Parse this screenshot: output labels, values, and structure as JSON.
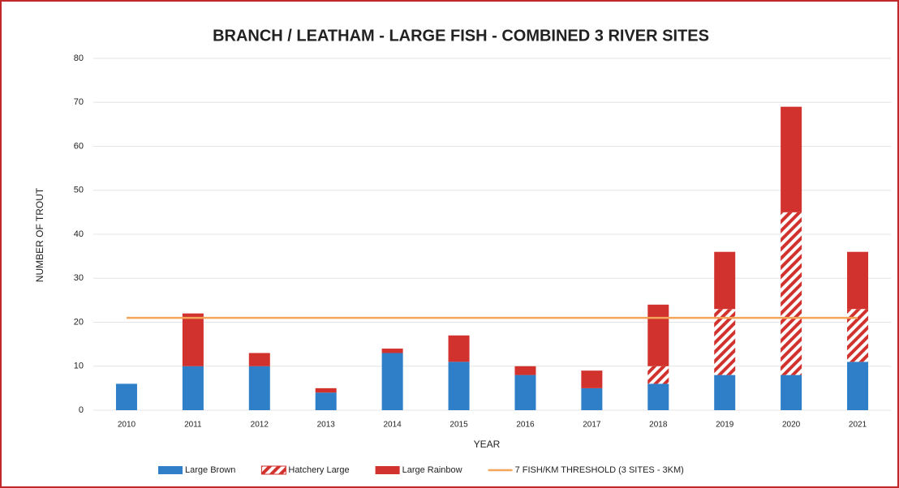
{
  "chart_data": {
    "type": "bar",
    "stacked": true,
    "title": "BRANCH / LEATHAM - LARGE FISH - COMBINED 3 RIVER SITES",
    "x_label": "YEAR",
    "y_label": "NUMBER OF TROUT",
    "categories": [
      "2010",
      "2011",
      "2012",
      "2013",
      "2014",
      "2015",
      "2016",
      "2017",
      "2018",
      "2019",
      "2020",
      "2021"
    ],
    "series": [
      {
        "name": "Large Brown",
        "color": "#2f7fc8",
        "values": [
          6,
          10,
          10,
          4,
          13,
          11,
          8,
          5,
          6,
          8,
          8,
          11
        ]
      },
      {
        "name": "Hatchery Large",
        "color": "#d2322d",
        "hatch": true,
        "values": [
          0,
          0,
          0,
          0,
          0,
          0,
          0,
          0,
          4,
          15,
          37,
          12
        ]
      },
      {
        "name": "Large Rainbow",
        "color": "#d2322d",
        "values": [
          0,
          12,
          3,
          1,
          1,
          6,
          2,
          4,
          14,
          13,
          24,
          13
        ]
      },
      {
        "name": "7 FISH/KM THRESHOLD (3 SITES - 3KM)",
        "color": "#f5a55a",
        "type": "line",
        "values": [
          21,
          21,
          21,
          21,
          21,
          21,
          21,
          21,
          21,
          21,
          21,
          21
        ]
      }
    ],
    "ylim": [
      0,
      80
    ],
    "yticks": [
      0,
      10,
      20,
      30,
      40,
      50,
      60,
      70,
      80
    ],
    "grid": true,
    "legend": "bottom"
  }
}
